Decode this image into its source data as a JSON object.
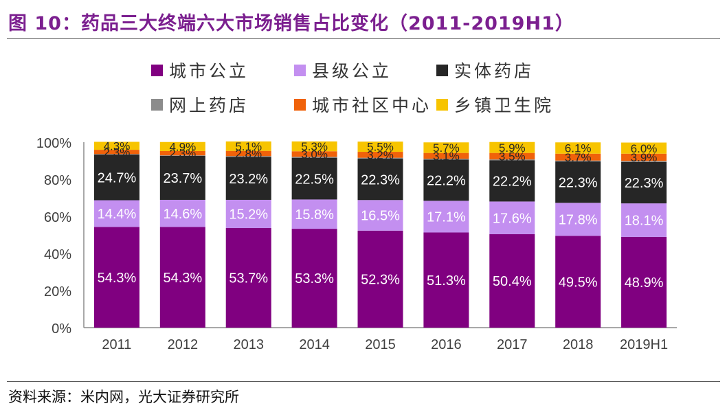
{
  "header": {
    "title": "图 10：药品三大终端六大市场销售占比变化（2011-2019H1）"
  },
  "footer": {
    "source": "资料来源：米内网，光大证券研究所"
  },
  "colors": {
    "城市公立": "#800080",
    "县级公立": "#C38FF0",
    "实体药店": "#262626",
    "网上药店": "#8C8C8C",
    "城市社区中心": "#F0620A",
    "乡镇卫生院": "#F7C400"
  },
  "chart_data": {
    "type": "bar",
    "stacked": true,
    "categories": [
      "2011",
      "2012",
      "2013",
      "2014",
      "2015",
      "2016",
      "2017",
      "2018",
      "2019H1"
    ],
    "ylim": [
      0,
      100
    ],
    "yticks": [
      "0%",
      "20%",
      "40%",
      "60%",
      "80%",
      "100%"
    ],
    "legend_position": "top",
    "series": [
      {
        "name": "城市公立",
        "values": [
          54.3,
          54.3,
          53.7,
          53.3,
          52.3,
          51.3,
          50.4,
          49.5,
          48.9
        ]
      },
      {
        "name": "县级公立",
        "values": [
          14.4,
          14.6,
          15.2,
          15.8,
          16.5,
          17.1,
          17.6,
          17.8,
          18.1
        ]
      },
      {
        "name": "实体药店",
        "values": [
          24.7,
          23.7,
          23.2,
          22.5,
          22.3,
          22.2,
          22.2,
          22.3,
          22.3
        ]
      },
      {
        "name": "网上药店",
        "values": [
          0.2,
          0.3,
          0.4,
          0.5,
          0.5,
          0.5,
          0.5,
          0.5,
          0.6
        ]
      },
      {
        "name": "城市社区中心",
        "values": [
          2.3,
          2.3,
          2.8,
          3.0,
          3.2,
          3.1,
          3.5,
          3.7,
          3.9
        ]
      },
      {
        "name": "乡镇卫生院",
        "values": [
          4.3,
          4.9,
          5.1,
          5.3,
          5.5,
          5.7,
          5.9,
          6.1,
          6.0
        ]
      }
    ]
  }
}
